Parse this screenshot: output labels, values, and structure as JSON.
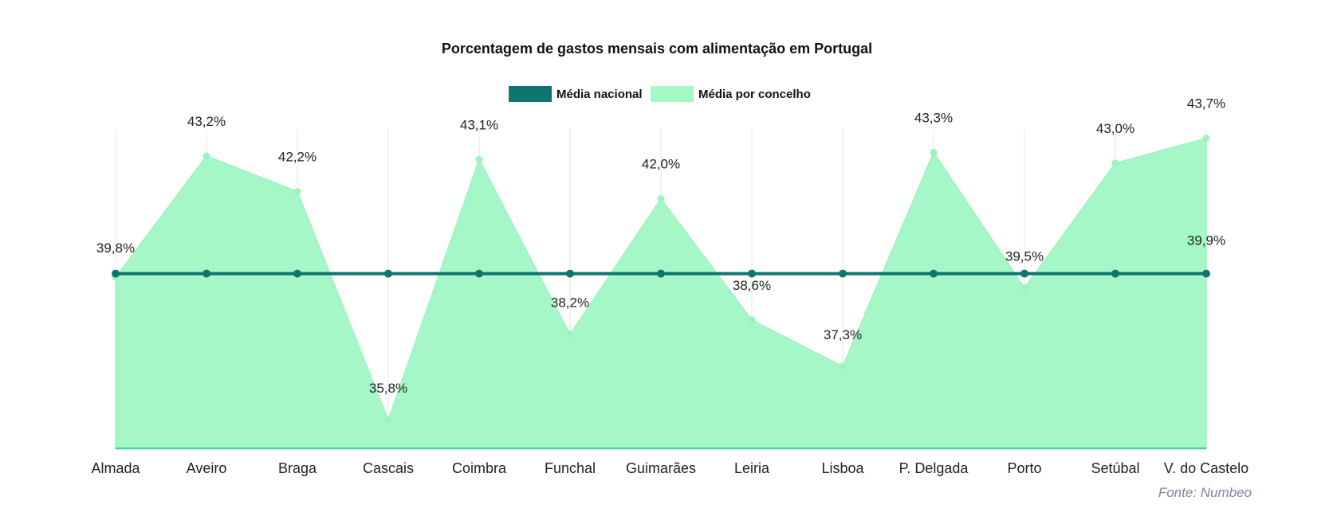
{
  "chart_data": {
    "type": "area",
    "title": "Porcentagem de gastos mensais com alimentação em Portugal",
    "categories": [
      "Almada",
      "Aveiro",
      "Braga",
      "Cascais",
      "Coimbra",
      "Funchal",
      "Guimarães",
      "Leiria",
      "Lisboa",
      "P. Delgada",
      "Porto",
      "Setúbal",
      "V. do Castelo"
    ],
    "series": [
      {
        "name": "Média nacional",
        "type": "line",
        "color": "#0e7570",
        "values": [
          39.9,
          39.9,
          39.9,
          39.9,
          39.9,
          39.9,
          39.9,
          39.9,
          39.9,
          39.9,
          39.9,
          39.9,
          39.9
        ]
      },
      {
        "name": "Média por concelho",
        "type": "area",
        "color": "#a6f7c8",
        "values": [
          39.8,
          43.2,
          42.2,
          35.8,
          43.1,
          38.2,
          42.0,
          38.6,
          37.3,
          43.3,
          39.5,
          43.0,
          43.7
        ]
      }
    ],
    "data_labels": [
      "39,8%",
      "43,2%",
      "42,2%",
      "35,8%",
      "43,1%",
      "38,2%",
      "42,0%",
      "38,6%",
      "37,3%",
      "43,3%",
      "39,5%",
      "43,0%",
      "43,7%"
    ],
    "national_label": "39,9%",
    "ylim": [
      35,
      44
    ],
    "grid": "vertical",
    "legend_position": "top-center",
    "xlabel": "",
    "ylabel": ""
  },
  "source": "Fonte: Numbeo",
  "colors": {
    "national_line": "#0e7570",
    "area_fill": "#a6f7c8",
    "area_stroke": "#9ef2c1",
    "axis": "#3fd3a0",
    "grid": "#e6e6e6",
    "text": "#222222",
    "source": "#7d8597"
  }
}
